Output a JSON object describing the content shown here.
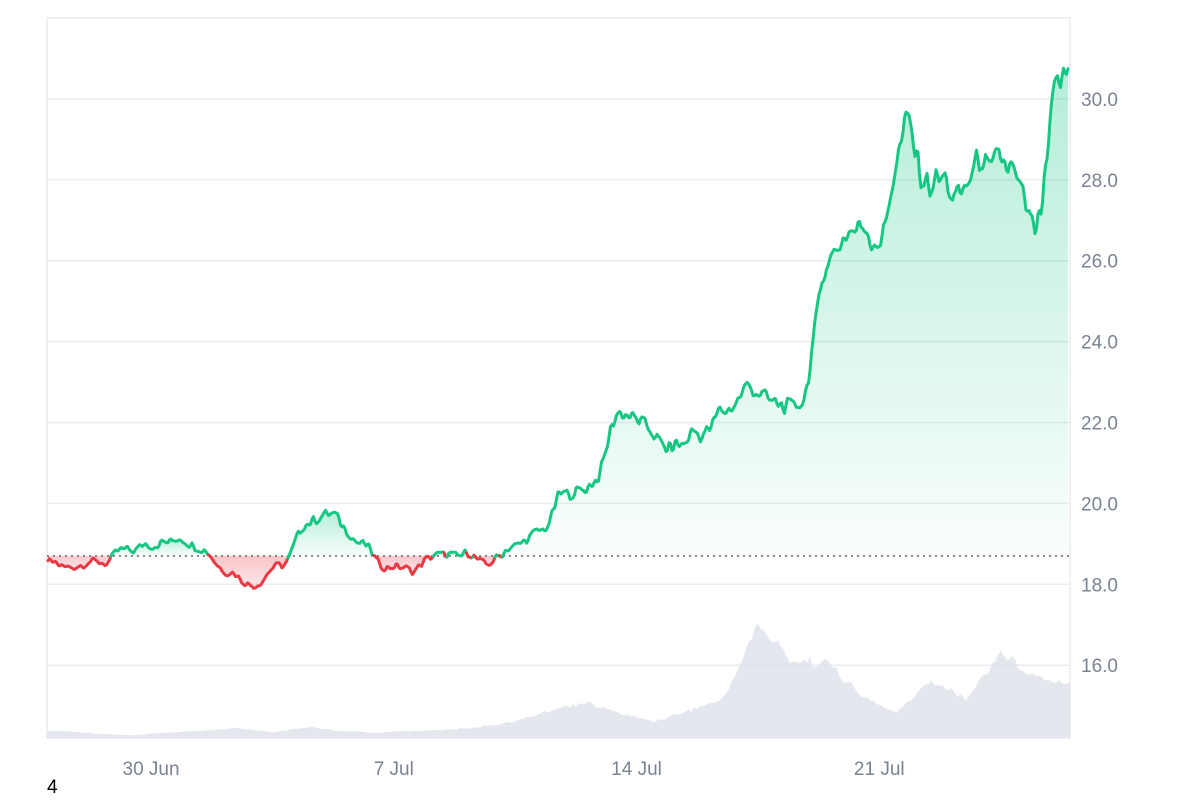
{
  "chart_data": {
    "type": "area",
    "baseline": 18.7,
    "ylim": [
      14.2,
      32.0
    ],
    "y_ticks": [
      "16.0",
      "18.0",
      "20.0",
      "22.0",
      "24.0",
      "26.0",
      "28.0",
      "30.0"
    ],
    "x_ticks": [
      "30 Jun",
      "7 Jul",
      "14 Jul",
      "21 Jul"
    ],
    "colors": {
      "up": "#16c784",
      "down": "#ea3943",
      "volume": "#dfe3ea",
      "grid": "#e9ecf0",
      "tick_text": "#7a8392"
    },
    "series": [
      {
        "type": "price",
        "x": [
          "2024-06-27 00:00",
          "2024-06-27 18:00",
          "2024-06-28 12:00",
          "2024-06-29 06:00",
          "2024-06-30 00:00",
          "2024-06-30 18:00",
          "2024-07-01 12:00",
          "2024-07-02 06:00",
          "2024-07-03 00:00",
          "2024-07-03 18:00",
          "2024-07-04 12:00",
          "2024-07-05 06:00",
          "2024-07-06 00:00",
          "2024-07-06 18:00",
          "2024-07-07 12:00",
          "2024-07-08 06:00",
          "2024-07-09 00:00",
          "2024-07-09 18:00",
          "2024-07-10 12:00",
          "2024-07-11 06:00",
          "2024-07-12 00:00",
          "2024-07-12 18:00",
          "2024-07-13 12:00",
          "2024-07-14 06:00",
          "2024-07-15 00:00",
          "2024-07-15 18:00",
          "2024-07-16 12:00",
          "2024-07-17 06:00",
          "2024-07-18 00:00",
          "2024-07-18 18:00",
          "2024-07-19 12:00",
          "2024-07-20 06:00",
          "2024-07-21 00:00",
          "2024-07-21 18:00",
          "2024-07-22 12:00",
          "2024-07-23 06:00",
          "2024-07-24 00:00",
          "2024-07-24 18:00",
          "2024-07-25 12:00",
          "2024-07-26 06:00"
        ],
        "values": [
          18.55,
          18.45,
          18.5,
          18.8,
          18.95,
          19.1,
          18.85,
          18.3,
          18.0,
          18.45,
          19.55,
          19.65,
          19.0,
          18.45,
          18.35,
          18.8,
          18.75,
          18.5,
          19.0,
          19.4,
          20.35,
          20.5,
          22.3,
          22.0,
          21.4,
          21.75,
          22.25,
          23.0,
          22.5,
          22.35,
          26.0,
          26.6,
          26.7,
          29.2,
          28.0,
          27.6,
          28.3,
          28.6,
          26.8,
          30.5
        ]
      },
      {
        "type": "volume",
        "x": [
          "2024-06-27",
          "2024-06-28",
          "2024-06-29",
          "2024-06-30",
          "2024-07-01",
          "2024-07-02",
          "2024-07-03",
          "2024-07-04",
          "2024-07-05",
          "2024-07-06",
          "2024-07-07",
          "2024-07-08",
          "2024-07-09",
          "2024-07-10",
          "2024-07-11",
          "2024-07-12",
          "2024-07-13",
          "2024-07-14",
          "2024-07-15",
          "2024-07-16",
          "2024-07-17",
          "2024-07-18",
          "2024-07-19",
          "2024-07-20",
          "2024-07-21",
          "2024-07-22",
          "2024-07-23",
          "2024-07-24",
          "2024-07-25",
          "2024-07-26"
        ],
        "values": [
          0.05,
          0.03,
          0.02,
          0.04,
          0.05,
          0.07,
          0.04,
          0.08,
          0.05,
          0.04,
          0.05,
          0.06,
          0.08,
          0.12,
          0.2,
          0.26,
          0.18,
          0.12,
          0.2,
          0.28,
          0.82,
          0.56,
          0.55,
          0.3,
          0.18,
          0.42,
          0.28,
          0.62,
          0.45,
          0.4
        ]
      }
    ]
  },
  "footer": {
    "note": "4"
  }
}
